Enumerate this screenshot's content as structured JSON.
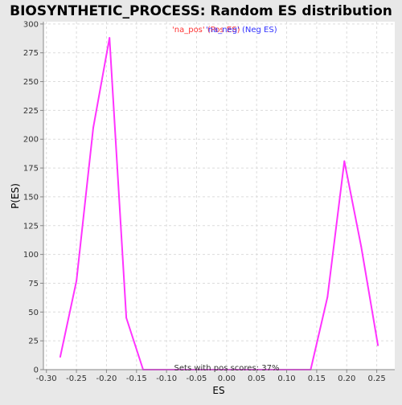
{
  "chart_data": {
    "type": "line",
    "title": "BIOSYNTHETIC_PROCESS: Random ES distribution",
    "xlabel": "ES",
    "ylabel": "P(ES)",
    "xlim": [
      -0.305,
      0.28
    ],
    "ylim": [
      0,
      302
    ],
    "xticks": [
      -0.3,
      -0.25,
      -0.2,
      -0.15,
      -0.1,
      -0.05,
      0.0,
      0.05,
      0.1,
      0.15,
      0.2,
      0.25
    ],
    "xtick_labels": [
      "-0.30",
      "-0.25",
      "-0.20",
      "-0.15",
      "-0.10",
      "-0.05",
      "0.00",
      "0.05",
      "0.10",
      "0.15",
      "0.20",
      "0.25"
    ],
    "yticks": [
      0,
      25,
      50,
      75,
      100,
      125,
      150,
      175,
      200,
      225,
      250,
      275,
      300
    ],
    "grid": true,
    "legend": {
      "placement": "top-center",
      "entries": [
        {
          "text": "'na_pos' (Pos ES)",
          "color": "#ff3333"
        },
        {
          "text": "'na_neg' (Neg ES)",
          "color": "#3333ff"
        }
      ]
    },
    "annotation": "Sets with pos scores: 37%",
    "series": [
      {
        "color": "#ff33ff",
        "x": [
          -0.277,
          -0.25,
          -0.222,
          -0.195,
          -0.167,
          -0.139,
          -0.111,
          -0.083,
          -0.055,
          -0.028,
          0.0,
          0.028,
          0.056,
          0.084,
          0.112,
          0.14,
          0.168,
          0.196,
          0.224,
          0.252
        ],
        "y": [
          11,
          77,
          210,
          288,
          45,
          0,
          0,
          0,
          0,
          0,
          0,
          0,
          0,
          0,
          0,
          0,
          63,
          181,
          107,
          21
        ]
      }
    ]
  }
}
